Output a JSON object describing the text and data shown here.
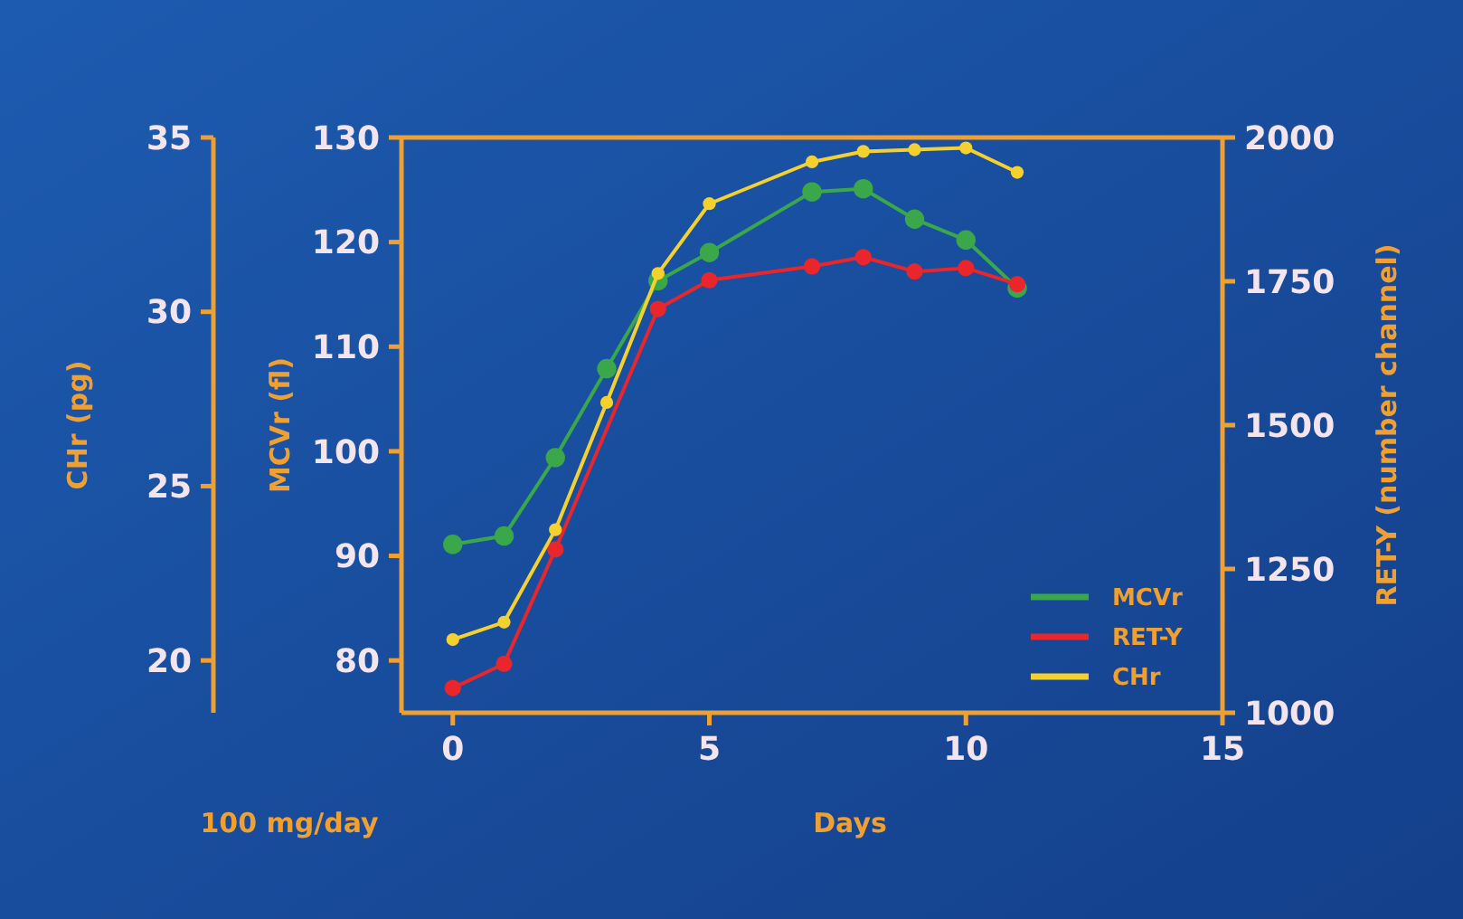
{
  "chart_data": {
    "type": "line",
    "xlabel": "Days",
    "ylabel": "MCVr (fl)",
    "y2label": "RET-Y (number channel)",
    "y3label": "CHr (pg)",
    "annotations": [
      "100 mg/day"
    ],
    "x": [
      0,
      1,
      2,
      3,
      4,
      5,
      7,
      8,
      9,
      10,
      11
    ],
    "xlim": [
      -1,
      15
    ],
    "xticks": [
      0,
      5,
      10,
      15
    ],
    "ylim": [
      75,
      130
    ],
    "yticks": [
      80,
      90,
      100,
      110,
      120,
      130
    ],
    "y2lim": [
      1000,
      2000
    ],
    "y2ticks": [
      1000,
      1250,
      1500,
      1750,
      2000
    ],
    "y3lim": [
      18.5,
      35
    ],
    "y3ticks": [
      20,
      25,
      30,
      35
    ],
    "series": [
      {
        "name": "MCVr",
        "color": "#3aa84a",
        "values": [
          91.1,
          91.9,
          99.4,
          107.9,
          116.3,
          119.0,
          124.8,
          125.1,
          122.2,
          120.2,
          115.6
        ]
      },
      {
        "name": "RET-Y",
        "color": "#e8262b",
        "axis": "y2",
        "x": [
          0,
          1,
          2,
          4,
          5,
          7,
          8,
          9,
          10,
          11
        ],
        "values": [
          1043,
          1085,
          1284,
          1702,
          1752,
          1776,
          1792,
          1767,
          1773,
          1745
        ]
      },
      {
        "name": "CHr",
        "color": "#f5d130",
        "axis": "y3",
        "values": [
          20.6,
          21.1,
          23.75,
          27.4,
          31.1,
          33.1,
          34.3,
          34.6,
          34.65,
          34.7,
          34.0
        ]
      }
    ],
    "marker": "circle",
    "grid": false,
    "legend": "bottom right"
  }
}
